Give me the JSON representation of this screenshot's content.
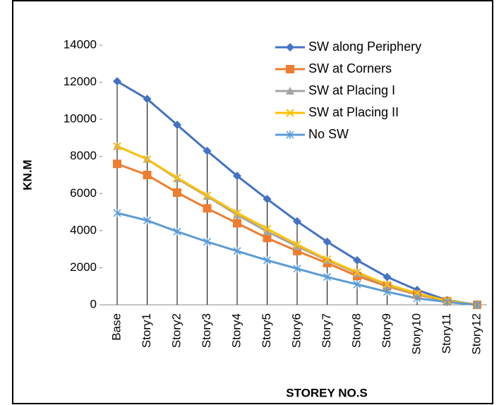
{
  "chart_data": {
    "type": "line",
    "x_label": "STOREY NO.S",
    "y_label": "KN.M",
    "categories": [
      "Base",
      "Story1",
      "Story2",
      "Story3",
      "Story4",
      "Story5",
      "Story6",
      "Story7",
      "Story8",
      "Story9",
      "Story10",
      "Story11",
      "Story12"
    ],
    "series": [
      {
        "name": "SW along Periphery",
        "color": "#4472c4",
        "marker": "diamond",
        "values": [
          12050,
          11100,
          9700,
          8300,
          6950,
          5700,
          4500,
          3400,
          2400,
          1500,
          800,
          250,
          0
        ]
      },
      {
        "name": "SW at Corners",
        "color": "#ed7d31",
        "marker": "square",
        "values": [
          7600,
          7000,
          6050,
          5200,
          4400,
          3600,
          2900,
          2250,
          1550,
          1000,
          550,
          200,
          0
        ]
      },
      {
        "name": "SW at Placing I",
        "color": "#a5a5a5",
        "marker": "triangle",
        "values": [
          8550,
          7850,
          6800,
          5850,
          4850,
          3950,
          3150,
          2400,
          1700,
          1050,
          600,
          200,
          0
        ]
      },
      {
        "name": "SW at Placing II",
        "color": "#ffc000",
        "marker": "x",
        "values": [
          8550,
          7850,
          6850,
          5900,
          4950,
          4100,
          3250,
          2450,
          1750,
          1100,
          620,
          220,
          0
        ]
      },
      {
        "name": "No SW",
        "color": "#5b9bd5",
        "marker": "star",
        "values": [
          4950,
          4550,
          3950,
          3400,
          2900,
          2400,
          1950,
          1500,
          1100,
          700,
          350,
          150,
          0
        ]
      }
    ],
    "ylim": [
      0,
      14000
    ],
    "yticks": [
      0,
      2000,
      4000,
      6000,
      8000,
      10000,
      12000,
      14000
    ],
    "grid": false,
    "drop_lines": true,
    "legend": "top-right"
  }
}
